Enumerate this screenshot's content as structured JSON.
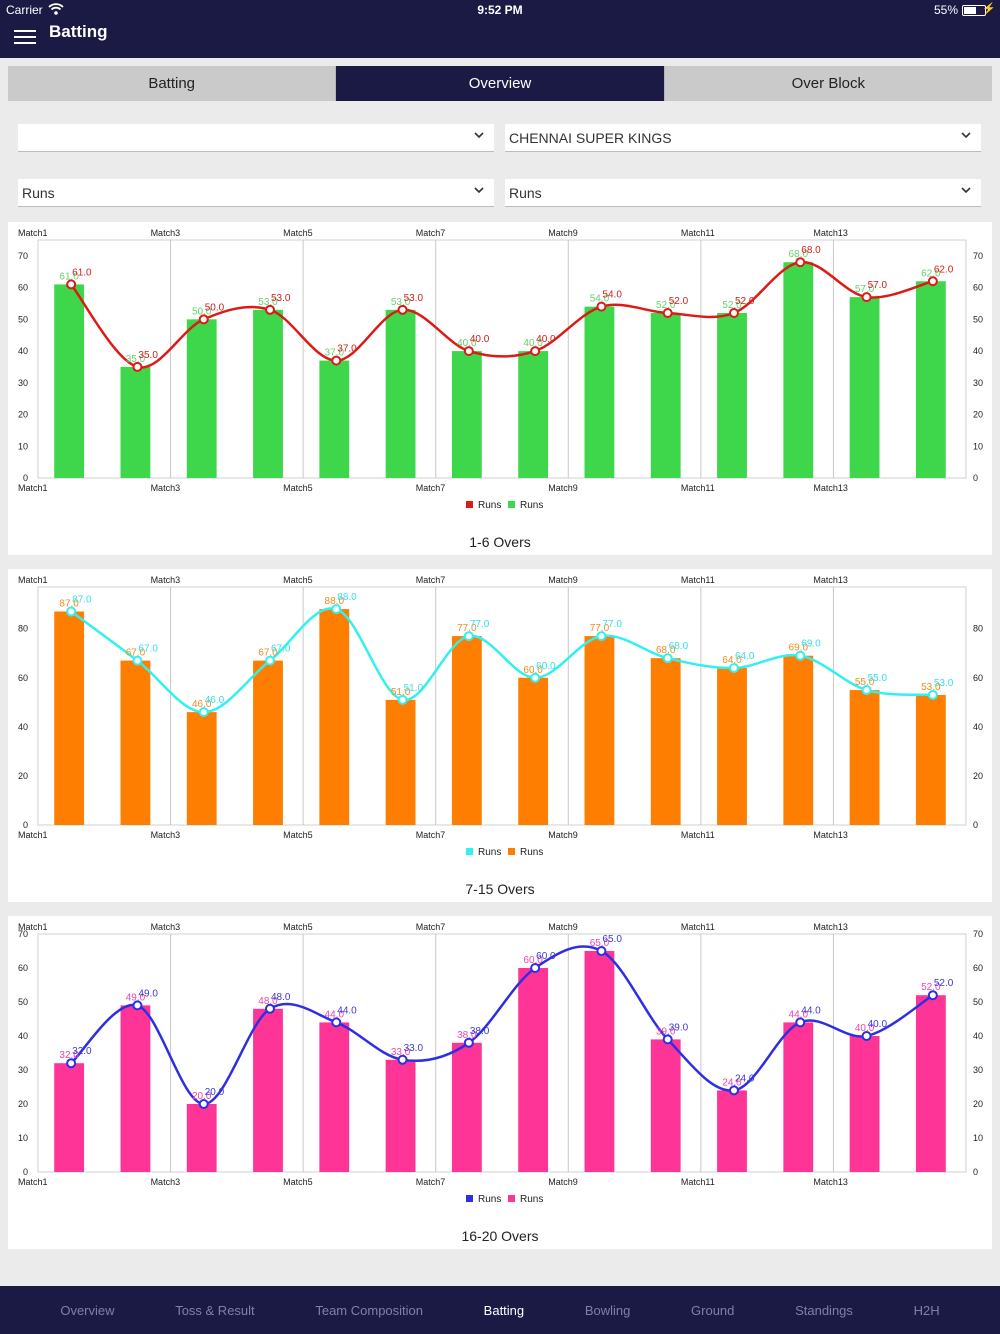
{
  "status": {
    "carrier": "Carrier",
    "time": "9:52 PM",
    "battery": "55%"
  },
  "nav": {
    "title": "Batting"
  },
  "segments": [
    {
      "label": "Batting",
      "active": false
    },
    {
      "label": "Overview",
      "active": true
    },
    {
      "label": "Over Block",
      "active": false
    }
  ],
  "filters": {
    "team_left": "",
    "team_right": "CHENNAI SUPER KINGS",
    "metric_left": "Runs",
    "metric_right": "Runs"
  },
  "chart_data": [
    {
      "type": "bar+line",
      "title": "1-6 Overs",
      "x_tick_labels": [
        "Match1",
        "Match3",
        "Match5",
        "Match7",
        "Match9",
        "Match11",
        "Match13"
      ],
      "categories": [
        "Match1",
        "Match2",
        "Match3",
        "Match4",
        "Match5",
        "Match6",
        "Match7",
        "Match8",
        "Match9",
        "Match10",
        "Match11",
        "Match12",
        "Match13",
        "Match14"
      ],
      "ylim": [
        0,
        75
      ],
      "yticks": [
        0,
        10,
        20,
        30,
        40,
        50,
        60,
        70
      ],
      "bar_color": "#3ed74c",
      "line_color": "#dd1a16",
      "bar_label_color": "#66d26c",
      "line_label_color": "#d0201c",
      "series": [
        {
          "name": "Runs",
          "kind": "line",
          "values": [
            61,
            35,
            50,
            53,
            37,
            53,
            40,
            40,
            54,
            52,
            52,
            68,
            57,
            62
          ]
        },
        {
          "name": "Runs",
          "kind": "bar",
          "values": [
            61,
            35,
            50,
            53,
            37,
            53,
            40,
            40,
            54,
            52,
            52,
            68,
            57,
            62
          ]
        }
      ],
      "legend": "bottom-center"
    },
    {
      "type": "bar+line",
      "title": "7-15 Overs",
      "x_tick_labels": [
        "Match1",
        "Match3",
        "Match5",
        "Match7",
        "Match9",
        "Match11",
        "Match13"
      ],
      "categories": [
        "Match1",
        "Match2",
        "Match3",
        "Match4",
        "Match5",
        "Match6",
        "Match7",
        "Match8",
        "Match9",
        "Match10",
        "Match11",
        "Match12",
        "Match13",
        "Match14"
      ],
      "ylim": [
        0,
        97
      ],
      "yticks": [
        0,
        20,
        40,
        60,
        80
      ],
      "bar_color": "#fd7e00",
      "line_color": "#33f0f0",
      "bar_label_color": "#f08c20",
      "line_label_color": "#34e0e8",
      "series": [
        {
          "name": "Runs",
          "kind": "line",
          "values": [
            87,
            67,
            46,
            67,
            88,
            51,
            77,
            60,
            77,
            68,
            64,
            69,
            55,
            53
          ]
        },
        {
          "name": "Runs",
          "kind": "bar",
          "values": [
            87,
            67,
            46,
            67,
            88,
            51,
            77,
            60,
            77,
            68,
            64,
            69,
            55,
            53
          ]
        }
      ],
      "legend": "bottom-center"
    },
    {
      "type": "bar+line",
      "title": "16-20 Overs",
      "x_tick_labels": [
        "Match1",
        "Match3",
        "Match5",
        "Match7",
        "Match9",
        "Match11",
        "Match13"
      ],
      "categories": [
        "Match1",
        "Match2",
        "Match3",
        "Match4",
        "Match5",
        "Match6",
        "Match7",
        "Match8",
        "Match9",
        "Match10",
        "Match11",
        "Match12",
        "Match13",
        "Match14"
      ],
      "ylim": [
        0,
        70
      ],
      "yticks": [
        0,
        10,
        20,
        30,
        40,
        50,
        60,
        70
      ],
      "bar_color": "#fe3597",
      "line_color": "#2e2ee2",
      "bar_label_color": "#ee44b0",
      "line_label_color": "#3a3ad8",
      "series": [
        {
          "name": "Runs",
          "kind": "line",
          "values": [
            32,
            49,
            20,
            48,
            44,
            33,
            38,
            60,
            65,
            39,
            24,
            44,
            40,
            52
          ]
        },
        {
          "name": "Runs",
          "kind": "bar",
          "values": [
            32,
            49,
            20,
            48,
            44,
            33,
            38,
            60,
            65,
            39,
            24,
            44,
            40,
            52
          ]
        }
      ],
      "legend": "bottom-center"
    }
  ],
  "tabs": [
    {
      "label": "Overview",
      "active": false
    },
    {
      "label": "Toss & Result",
      "active": false
    },
    {
      "label": "Team Composition",
      "active": false
    },
    {
      "label": "Batting",
      "active": true
    },
    {
      "label": "Bowling",
      "active": false
    },
    {
      "label": "Ground",
      "active": false
    },
    {
      "label": "Standings",
      "active": false
    },
    {
      "label": "H2H",
      "active": false
    }
  ]
}
